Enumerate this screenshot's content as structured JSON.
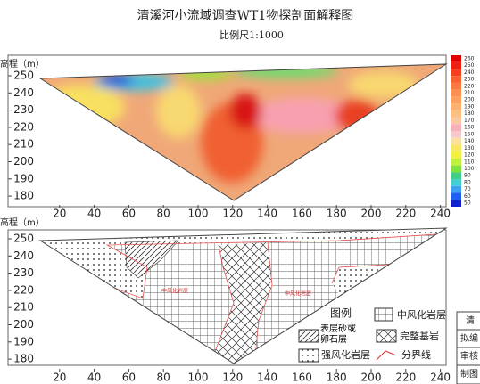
{
  "title": "清溪河小流域调查WT1物探剖面解释图",
  "subtitle": "比例尺1:1000",
  "top_panel": {
    "y_label": "高程（m）",
    "yticks": [
      250,
      240,
      230,
      220,
      210,
      200,
      190,
      180
    ],
    "xticks": [
      20,
      40,
      60,
      80,
      100,
      120,
      140,
      160,
      180,
      200,
      220,
      240
    ],
    "colorbar": [
      260,
      250,
      240,
      230,
      220,
      210,
      200,
      190,
      180,
      170,
      160,
      150,
      140,
      130,
      120,
      110,
      100,
      90,
      80,
      70,
      60,
      50
    ]
  },
  "bottom_panel": {
    "y_label": "高程（m）",
    "yticks": [
      250,
      240,
      230,
      220,
      210,
      200,
      190,
      180
    ],
    "xticks": [
      20,
      40,
      60,
      80,
      100,
      120,
      140,
      160,
      180,
      200,
      220,
      240
    ],
    "annotations": [
      "中风化岩层",
      "中风化岩层"
    ]
  },
  "legend": {
    "title": "图例",
    "items": [
      "中风化岩层",
      "表层砂或卵石层",
      "完整基岩",
      "强风化岩层",
      "分界线"
    ]
  },
  "title_block": [
    "清",
    "拟编",
    "审核",
    "制图"
  ]
}
